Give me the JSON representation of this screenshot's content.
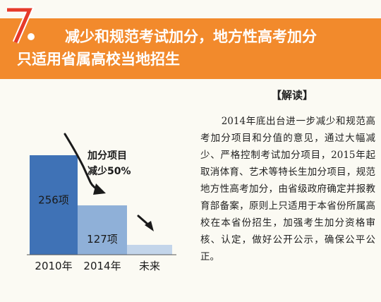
{
  "section_number": "7",
  "title_line1": "减少和规范考试加分，地方性高考加分",
  "title_line2": "只适用省属高校当地招生",
  "explanation": {
    "heading": "【解读】",
    "body": "2014年底出台进一步减少和规范高考加分项目和分值的意见，通过大幅减少、严格控制考试加分项目，2015年起取消体育、艺术等特长生加分项目，规范地方性高考加分，由省级政府确定并报教育部备案，原则上只适用于本省份所属高校在本省份招生，加强考生加分资格审核、认定，做好公开公示，确保公平公正。"
  },
  "chart_data": {
    "type": "bar",
    "categories": [
      "2010年",
      "2014年",
      "未来"
    ],
    "values": [
      256,
      127,
      null
    ],
    "value_labels": [
      "256项",
      "127项",
      ""
    ],
    "annotation": [
      "加分项目",
      "减少50%"
    ],
    "colors": {
      "bar1": "#3f72b6",
      "bar2": "#8fb0d8",
      "bar3": "#c3d5ea",
      "arrow": "#1a1a1a"
    }
  },
  "colors": {
    "banner": "#f28a2c",
    "number": "#e63a2a"
  }
}
